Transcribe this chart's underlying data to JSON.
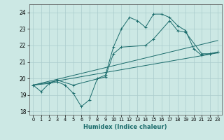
{
  "xlabel": "Humidex (Indice chaleur)",
  "ylabel": "",
  "xlim": [
    -0.5,
    23.5
  ],
  "ylim": [
    17.8,
    24.5
  ],
  "yticks": [
    18,
    19,
    20,
    21,
    22,
    23,
    24
  ],
  "xticks": [
    0,
    1,
    2,
    3,
    4,
    5,
    6,
    7,
    8,
    9,
    10,
    11,
    12,
    13,
    14,
    15,
    16,
    17,
    18,
    19,
    20,
    21,
    22,
    23
  ],
  "bg_color": "#cce8e4",
  "grid_color": "#aacccc",
  "line_color": "#1a6b6b",
  "series0_x": [
    0,
    1,
    2,
    3,
    4,
    5,
    6,
    7,
    8,
    9,
    10,
    11,
    12,
    13,
    14,
    15,
    16,
    17,
    18,
    19,
    20,
    21,
    22,
    23
  ],
  "series0_y": [
    19.6,
    19.2,
    19.7,
    19.8,
    19.6,
    19.1,
    18.3,
    18.7,
    20.0,
    20.2,
    21.9,
    23.0,
    23.7,
    23.5,
    23.1,
    23.9,
    23.9,
    23.7,
    23.2,
    22.9,
    21.8,
    21.4,
    21.5,
    21.6
  ],
  "series1_x": [
    0,
    2,
    3,
    5,
    9,
    10,
    11,
    14,
    15,
    17,
    18,
    19,
    21,
    22,
    23
  ],
  "series1_y": [
    19.6,
    19.7,
    19.9,
    19.6,
    20.1,
    21.5,
    21.9,
    22.0,
    22.4,
    23.5,
    22.9,
    22.8,
    21.5,
    21.5,
    21.6
  ],
  "trend1_x": [
    0,
    23
  ],
  "trend1_y": [
    19.6,
    21.55
  ],
  "trend2_x": [
    0,
    23
  ],
  "trend2_y": [
    19.6,
    22.3
  ]
}
